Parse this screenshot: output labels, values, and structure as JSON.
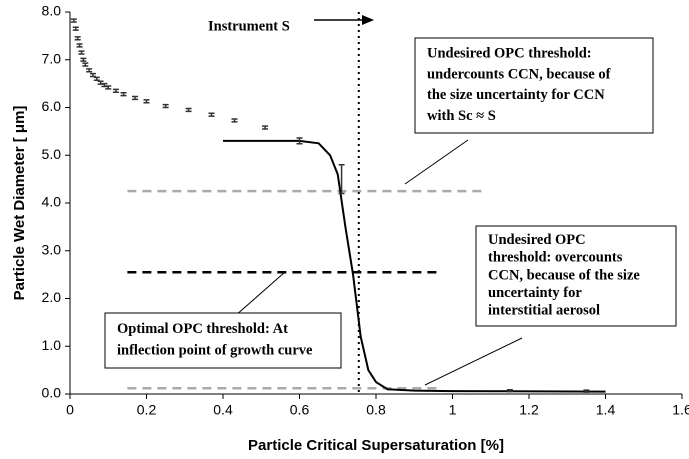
{
  "chart_data": {
    "type": "scatter",
    "x_label": "Particle Critical Supersaturation [%]",
    "y_label": "Particle Wet Diameter  [ μm]",
    "xlim": [
      0,
      1.6
    ],
    "xticks": [
      0,
      0.2,
      0.4,
      0.6,
      0.8,
      1,
      1.2,
      1.4,
      1.6
    ],
    "ylim": [
      0,
      8
    ],
    "yticks": [
      {
        "value": 0,
        "label": "0.0"
      },
      {
        "value": 1,
        "label": "1.0"
      },
      {
        "value": 2,
        "label": "2.0"
      },
      {
        "value": 3,
        "label": "3.0"
      },
      {
        "value": 4,
        "label": "4.0"
      },
      {
        "value": 5,
        "label": "5.0"
      },
      {
        "value": 6,
        "label": "6.0"
      },
      {
        "value": 7,
        "label": "7.0"
      },
      {
        "value": 8,
        "label": "8.0"
      }
    ],
    "points": {
      "x": [
        0.01,
        0.015,
        0.02,
        0.025,
        0.03,
        0.035,
        0.04,
        0.05,
        0.06,
        0.07,
        0.08,
        0.09,
        0.1,
        0.12,
        0.14,
        0.17,
        0.2,
        0.25,
        0.31,
        0.37,
        0.43,
        0.51,
        0.6,
        0.71,
        1.15,
        1.35
      ],
      "values": [
        7.82,
        7.65,
        7.45,
        7.3,
        7.15,
        7.0,
        6.9,
        6.78,
        6.68,
        6.6,
        6.52,
        6.47,
        6.42,
        6.35,
        6.28,
        6.2,
        6.13,
        6.03,
        5.95,
        5.85,
        5.73,
        5.58,
        5.3,
        4.5,
        0.07,
        0.06
      ],
      "errors": [
        0.03,
        0.03,
        0.03,
        0.03,
        0.03,
        0.03,
        0.03,
        0.03,
        0.03,
        0.03,
        0.03,
        0.03,
        0.03,
        0.03,
        0.03,
        0.03,
        0.03,
        0.03,
        0.03,
        0.03,
        0.03,
        0.03,
        0.06,
        0.3,
        0.02,
        0.02
      ],
      "color": "#333333"
    },
    "curve": {
      "x": [
        0.4,
        0.6,
        0.65,
        0.68,
        0.7,
        0.72,
        0.74,
        0.76,
        0.78,
        0.8,
        0.83,
        0.9,
        1.0,
        1.4
      ],
      "values": [
        5.3,
        5.3,
        5.25,
        5.0,
        4.6,
        3.5,
        2.5,
        1.2,
        0.5,
        0.25,
        0.1,
        0.07,
        0.06,
        0.05
      ],
      "color": "#000000"
    },
    "thresholds": [
      {
        "y": 4.25,
        "x": [
          0.15,
          1.08
        ],
        "color": "#aaaaaa"
      },
      {
        "y": 2.55,
        "x": [
          0.15,
          0.97
        ],
        "color": "#000000"
      },
      {
        "y": 0.12,
        "x": [
          0.15,
          0.97
        ],
        "color": "#aaaaaa"
      }
    ],
    "instrument_x": 0.755,
    "instrument_label": "Instrument S",
    "annotations": [
      [
        "Undesired OPC threshold:",
        "undercounts CCN, because of",
        "the size uncertainty for CCN",
        "with Sc ≈ S"
      ],
      [
        "Undesired OPC",
        "threshold: overcounts",
        "CCN, because of the size",
        "uncertainty for",
        "interstitial aerosol"
      ],
      [
        "Optimal OPC threshold: At",
        "inflection point of growth curve"
      ]
    ]
  }
}
